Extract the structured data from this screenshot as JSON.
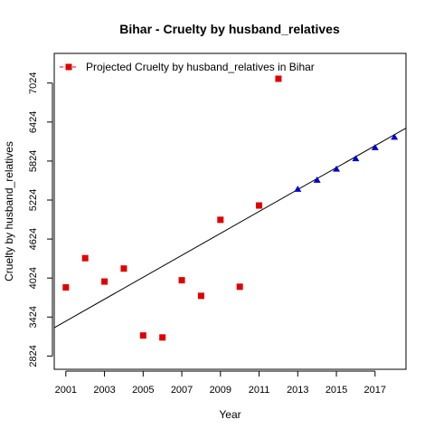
{
  "chart_data": {
    "type": "scatter",
    "title": "Bihar  -  Cruelty by husband_relatives",
    "xlabel": "Year",
    "ylabel": "Cruelty by husband_relatives",
    "xlim": [
      2000.4,
      2018.6
    ],
    "ylim": [
      2620,
      7480
    ],
    "x_ticks": [
      2001,
      2003,
      2005,
      2007,
      2009,
      2011,
      2013,
      2015,
      2017
    ],
    "y_ticks": [
      2824,
      3424,
      4024,
      4624,
      5224,
      5824,
      6424,
      7024
    ],
    "legend": {
      "position": "top-left",
      "label": "Projected  Cruelty by husband_relatives  in  Bihar"
    },
    "series": [
      {
        "marker": "square",
        "color": "#e00000",
        "points": [
          {
            "x": 2001,
            "y": 3880
          },
          {
            "x": 2002,
            "y": 4330
          },
          {
            "x": 2003,
            "y": 3970
          },
          {
            "x": 2004,
            "y": 4170
          },
          {
            "x": 2005,
            "y": 3140
          },
          {
            "x": 2006,
            "y": 3110
          },
          {
            "x": 2007,
            "y": 3990
          },
          {
            "x": 2008,
            "y": 3750
          },
          {
            "x": 2009,
            "y": 4920
          },
          {
            "x": 2010,
            "y": 3890
          },
          {
            "x": 2011,
            "y": 5140
          },
          {
            "x": 2012,
            "y": 7090
          }
        ]
      },
      {
        "marker": "triangle",
        "color": "#0000cc",
        "points": [
          {
            "x": 2013,
            "y": 5390
          },
          {
            "x": 2014,
            "y": 5530
          },
          {
            "x": 2015,
            "y": 5700
          },
          {
            "x": 2016,
            "y": 5860
          },
          {
            "x": 2017,
            "y": 6030
          },
          {
            "x": 2018,
            "y": 6190
          }
        ]
      }
    ],
    "trend_line": {
      "color": "#000000",
      "points": [
        {
          "x": 2000.4,
          "y": 3260
        },
        {
          "x": 2018.6,
          "y": 6330
        }
      ]
    }
  }
}
